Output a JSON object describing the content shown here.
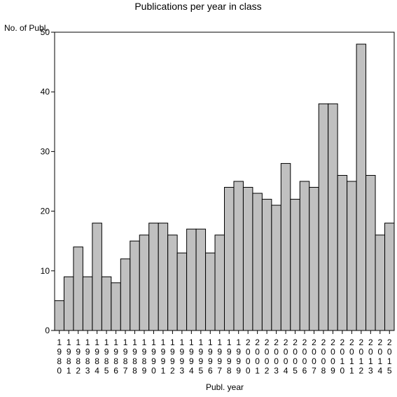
{
  "chart_data": {
    "type": "bar",
    "title": "Publications per year in class",
    "ylabel": "No. of Publ.",
    "xlabel": "Publ. year",
    "ylim": [
      0,
      50
    ],
    "yticks": [
      0,
      10,
      20,
      30,
      40,
      50
    ],
    "grid": false,
    "bar_color": "#c0c0c0",
    "categories": [
      "1980",
      "1981",
      "1982",
      "1983",
      "1984",
      "1985",
      "1986",
      "1987",
      "1988",
      "1989",
      "1990",
      "1991",
      "1992",
      "1993",
      "1994",
      "1995",
      "1996",
      "1997",
      "1998",
      "1999",
      "2000",
      "2001",
      "2002",
      "2003",
      "2004",
      "2005",
      "2006",
      "2007",
      "2008",
      "2009",
      "2010",
      "2011",
      "2012",
      "2013",
      "2014",
      "2015"
    ],
    "values": [
      5,
      9,
      14,
      9,
      18,
      9,
      8,
      12,
      15,
      16,
      18,
      18,
      16,
      13,
      17,
      17,
      13,
      16,
      24,
      25,
      24,
      23,
      22,
      21,
      28,
      22,
      25,
      24,
      38,
      38,
      26,
      25,
      48,
      26,
      16,
      18
    ]
  }
}
